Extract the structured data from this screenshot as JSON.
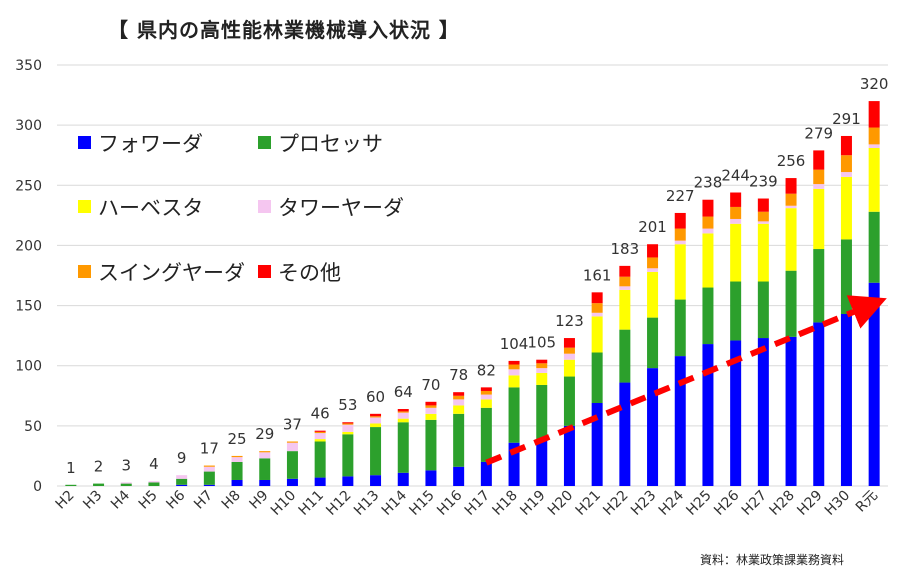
{
  "chart_data": {
    "type": "bar",
    "stacked": true,
    "title": "【 県内の高性能林業機械導入状況 】",
    "source": "資料：林業政策課業務資料",
    "ylim": [
      0,
      350
    ],
    "yticks": [
      0,
      50,
      100,
      150,
      200,
      250,
      300,
      350
    ],
    "categories": [
      "H2",
      "H3",
      "H4",
      "H5",
      "H6",
      "H7",
      "H8",
      "H9",
      "H10",
      "H11",
      "H12",
      "H13",
      "H14",
      "H15",
      "H16",
      "H17",
      "H18",
      "H19",
      "H20",
      "H21",
      "H22",
      "H23",
      "H24",
      "H25",
      "H26",
      "H27",
      "H28",
      "H29",
      "H30",
      "R元"
    ],
    "totals": [
      1,
      2,
      3,
      4,
      9,
      17,
      25,
      29,
      37,
      46,
      53,
      60,
      64,
      70,
      78,
      82,
      104,
      105,
      123,
      161,
      183,
      201,
      227,
      238,
      244,
      239,
      256,
      279,
      291,
      320
    ],
    "series": [
      {
        "name": "フォワーダ",
        "color": "#0000ff",
        "values": [
          0,
          0,
          0,
          0,
          1,
          1,
          5,
          5,
          6,
          7,
          8,
          9,
          11,
          13,
          16,
          20,
          36,
          38,
          50,
          69,
          86,
          98,
          108,
          118,
          121,
          123,
          124,
          136,
          143,
          169
        ]
      },
      {
        "name": "プロセッサ",
        "color": "#2ca02c",
        "values": [
          1,
          2,
          2,
          3,
          5,
          11,
          15,
          18,
          23,
          30,
          35,
          40,
          42,
          42,
          44,
          45,
          46,
          46,
          41,
          42,
          44,
          42,
          47,
          47,
          49,
          47,
          55,
          61,
          62,
          59
        ]
      },
      {
        "name": "ハーベスタ",
        "color": "#ffff00",
        "values": [
          0,
          0,
          0,
          0,
          0,
          0,
          0,
          0,
          0,
          2,
          2,
          3,
          3,
          5,
          7,
          7,
          10,
          10,
          14,
          30,
          33,
          38,
          46,
          45,
          48,
          48,
          52,
          50,
          52,
          53
        ]
      },
      {
        "name": "タワーヤーダ",
        "color": "#f5c6f0",
        "values": [
          0,
          0,
          1,
          1,
          3,
          4,
          4,
          5,
          7,
          5,
          6,
          5,
          5,
          5,
          5,
          4,
          5,
          4,
          5,
          3,
          3,
          3,
          3,
          4,
          4,
          2,
          2,
          4,
          4,
          3
        ]
      },
      {
        "name": "スイングヤーダ",
        "color": "#ff9900",
        "values": [
          0,
          0,
          0,
          0,
          0,
          1,
          1,
          1,
          1,
          1,
          1,
          1,
          1,
          2,
          3,
          3,
          4,
          4,
          5,
          8,
          8,
          9,
          10,
          10,
          10,
          8,
          10,
          12,
          14,
          14
        ]
      },
      {
        "name": "その他",
        "color": "#ff0000",
        "values": [
          0,
          0,
          0,
          0,
          0,
          0,
          0,
          0,
          0,
          1,
          1,
          2,
          2,
          3,
          3,
          3,
          3,
          3,
          8,
          9,
          9,
          11,
          13,
          14,
          12,
          11,
          13,
          16,
          16,
          22
        ]
      }
    ],
    "trend_arrow": {
      "from_category": "H17",
      "to_category": "R元",
      "color": "#ff0000",
      "style": "dashed"
    },
    "legend_position": "top-left, inside plot"
  }
}
